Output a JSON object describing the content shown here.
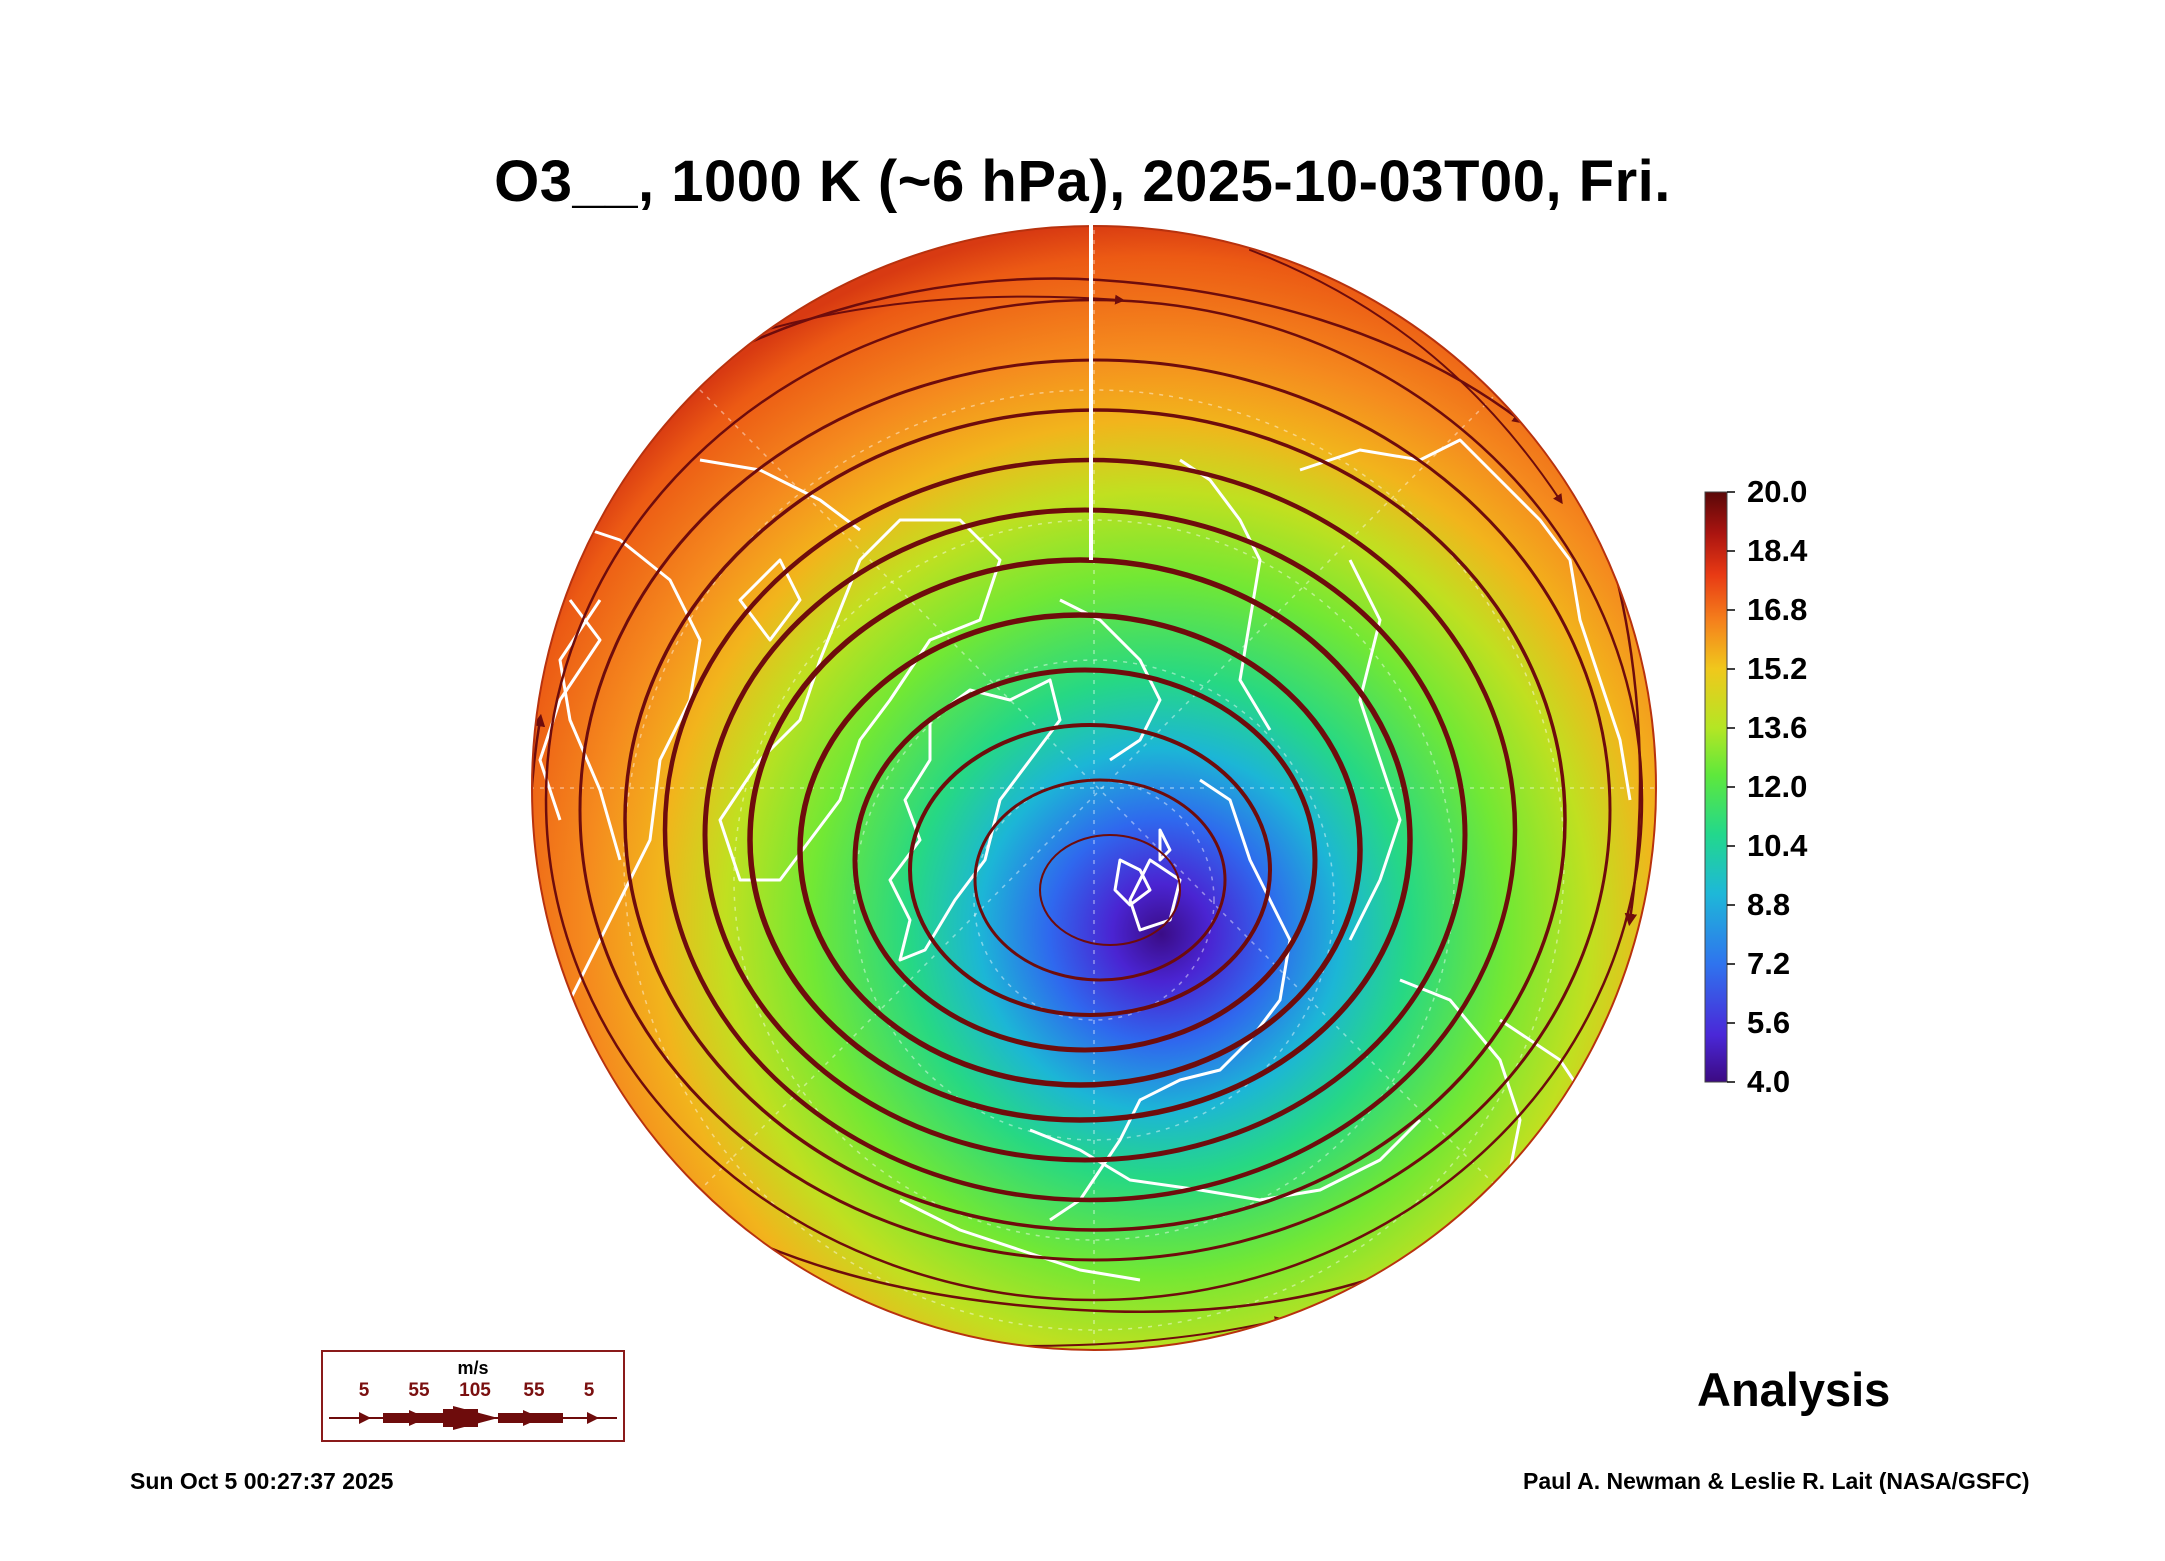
{
  "title": "O3__, 1000 K (~6 hPa), 2025-10-03T00, Fri.",
  "colorbar": {
    "labels": [
      "20.0",
      "18.4",
      "16.8",
      "15.2",
      "13.6",
      "12.0",
      "10.4",
      "8.8",
      "7.2",
      "5.6",
      "4.0"
    ],
    "min": 4.0,
    "max": 20.0,
    "colors": [
      "#3c0a82",
      "#4a28d8",
      "#2f74ee",
      "#1eb8d8",
      "#22d88c",
      "#5ee83c",
      "#b4e624",
      "#f0c81c",
      "#f5821c",
      "#e83a14",
      "#aa1410",
      "#5a0808"
    ]
  },
  "wind_legend": {
    "unit": "m/s",
    "speeds": [
      "5",
      "55",
      "105",
      "55",
      "5"
    ],
    "color": "#6e0c0c"
  },
  "label": "Analysis",
  "timestamp": "Sun Oct  5 00:27:37 2025",
  "credit": "Paul A. Newman & Leslie R. Lait (NASA/GSFC)",
  "map": {
    "projection": "orthographic, north polar",
    "field": "O3",
    "field_range": [
      4.0,
      20.0
    ],
    "minimum_center": "near North Pole",
    "streamline_color": "#6e0c0c",
    "coastline_color": "#ffffff"
  }
}
